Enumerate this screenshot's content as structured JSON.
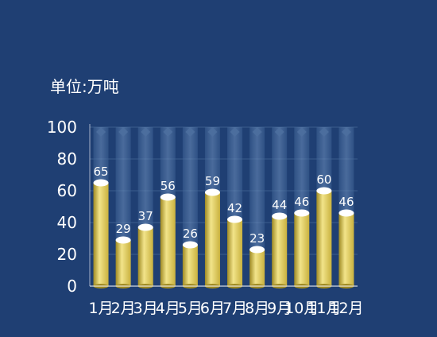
{
  "chart_data": {
    "type": "bar",
    "unit_label": "单位:万吨",
    "categories": [
      "1月",
      "2月",
      "3月",
      "4月",
      "5月",
      "6月",
      "7月",
      "8月",
      "9月",
      "10月",
      "11月",
      "12月"
    ],
    "values": [
      65,
      29,
      37,
      56,
      26,
      59,
      42,
      23,
      44,
      46,
      60,
      46
    ],
    "ylim": [
      0,
      100
    ],
    "yticks": [
      0,
      20,
      40,
      60,
      80,
      100
    ],
    "grid": true,
    "legend": "none"
  },
  "colors": {
    "background": "#1f3f73",
    "bar_light": "#f2e48a",
    "bar_mid": "#d8c24e",
    "bar_dark": "#9f8a23",
    "bar_top": "#ffffff",
    "track": "#4d6f9f",
    "text": "#ffffff",
    "grid": "#5577a6"
  }
}
